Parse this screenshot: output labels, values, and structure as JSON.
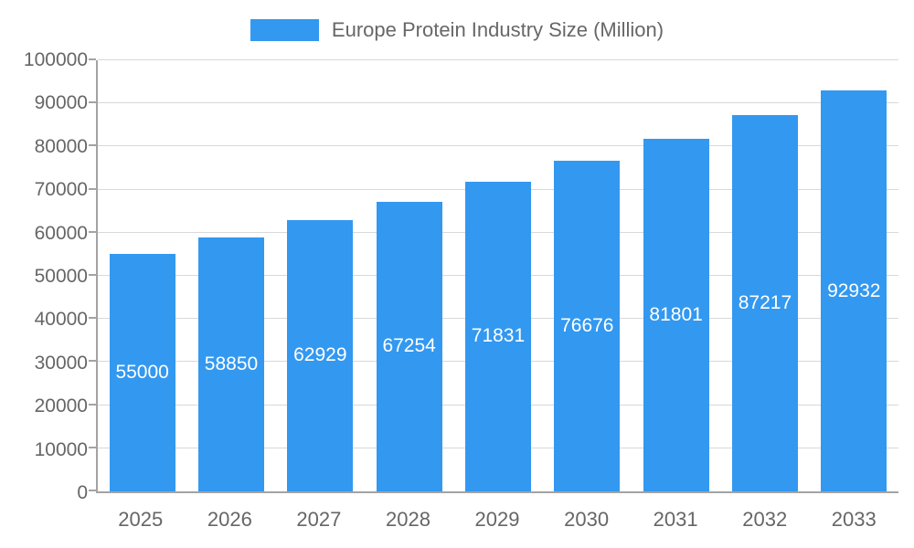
{
  "legend": {
    "label": "Europe Protein Industry Size (Million)"
  },
  "colors": {
    "bar": "#3398f0",
    "axis_text": "#666666",
    "axis_line": "#a3a3a3",
    "gridline": "#d8d8d8",
    "value_label": "#ffffff",
    "background": "#ffffff"
  },
  "chart_data": {
    "type": "bar",
    "title": "Europe Protein Industry Size (Million)",
    "series_name": "Europe Protein Industry Size (Million)",
    "categories": [
      "2025",
      "2026",
      "2027",
      "2028",
      "2029",
      "2030",
      "2031",
      "2032",
      "2033"
    ],
    "values": [
      55000,
      58850,
      62929,
      67254,
      71831,
      76676,
      81801,
      87217,
      92932
    ],
    "xlabel": "",
    "ylabel": "",
    "ylim": [
      0,
      100000
    ],
    "ytick_step": 10000,
    "yticks": [
      0,
      10000,
      20000,
      30000,
      40000,
      50000,
      60000,
      70000,
      80000,
      90000,
      100000
    ],
    "grid": true,
    "legend_position": "top",
    "bar_color": "#3398f0",
    "label_color": "#ffffff",
    "value_labels_inside_bars": true
  }
}
